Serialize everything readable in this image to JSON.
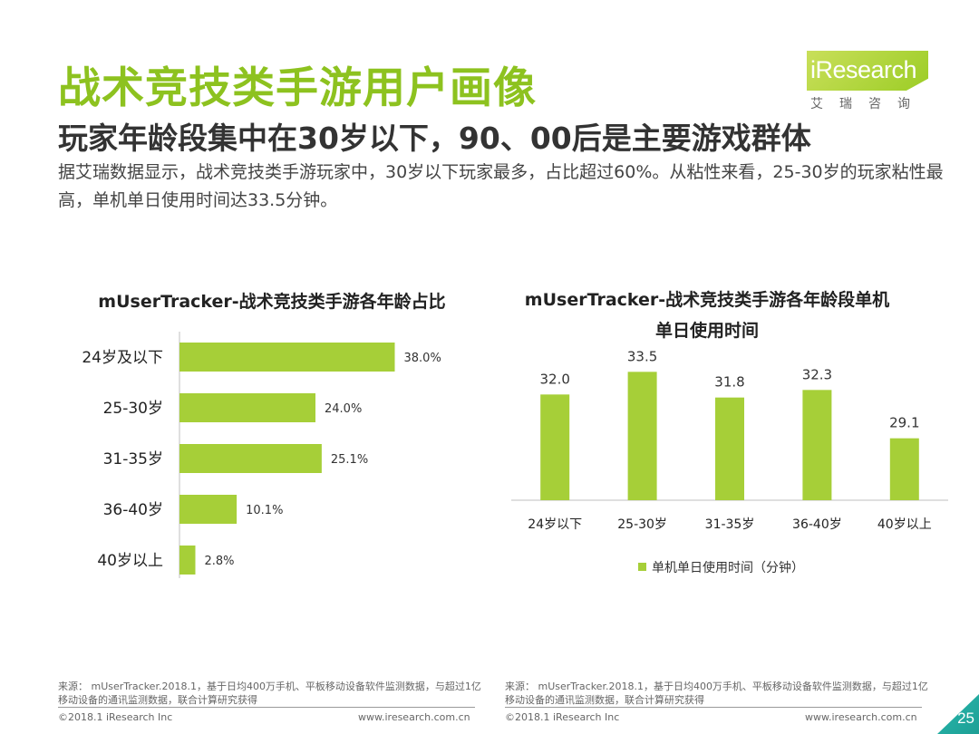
{
  "header": {
    "title": "战术竞技类手游用户画像",
    "subtitle": "玩家年龄段集中在30岁以下，90、00后是主要游戏群体",
    "description": "据艾瑞数据显示，战术竞技类手游玩家中，30岁以下玩家最多，占比超过60%。从粘性来看，25-30岁的玩家粘性最高，单机单日使用时间达33.5分钟。"
  },
  "logo": {
    "text": "iResearch",
    "subtext": "艾瑞咨询"
  },
  "colors": {
    "accent": "#8dc21f",
    "bar": "#a6cf38",
    "corner": "#27b8ad"
  },
  "chart_data": [
    {
      "type": "bar",
      "orientation": "horizontal",
      "title": "mUserTracker-战术竞技类手游各年龄占比",
      "categories": [
        "24岁及以下",
        "25-30岁",
        "31-35岁",
        "36-40岁",
        "40岁以上"
      ],
      "values": [
        38.0,
        24.0,
        25.1,
        10.1,
        2.8
      ],
      "value_labels": [
        "38.0%",
        "24.0%",
        "25.1%",
        "10.1%",
        "2.8%"
      ],
      "unit": "%",
      "xlim": [
        0,
        40
      ],
      "grid": false,
      "legend": false
    },
    {
      "type": "bar",
      "orientation": "vertical",
      "title_line1": "mUserTracker-战术竞技类手游各年龄段单机",
      "title_line2": "单日使用时间",
      "categories": [
        "24岁以下",
        "25-30岁",
        "31-35岁",
        "36-40岁",
        "40岁以上"
      ],
      "values": [
        32.0,
        33.5,
        31.8,
        32.3,
        29.1
      ],
      "value_labels": [
        "32.0",
        "33.5",
        "31.8",
        "32.3",
        "29.1"
      ],
      "series_name": "单机单日使用时间（分钟）",
      "ylim": [
        25,
        34
      ],
      "grid": false,
      "legend": "bottom"
    }
  ],
  "footer": {
    "left_source": "来源： mUserTracker.2018.1，基于日均400万手机、平板移动设备软件监测数据，与超过1亿移动设备的通讯监测数据，联合计算研究获得",
    "right_source": "来源： mUserTracker.2018.1，基于日均400万手机、平板移动设备软件监测数据，与超过1亿移动设备的通讯监测数据，联合计算研究获得",
    "left_copyright": "©2018.1 iResearch Inc",
    "left_url": "www.iresearch.com.cn",
    "right_copyright": "©2018.1 iResearch Inc",
    "right_url": "www.iresearch.com.cn",
    "page_number": "25"
  }
}
